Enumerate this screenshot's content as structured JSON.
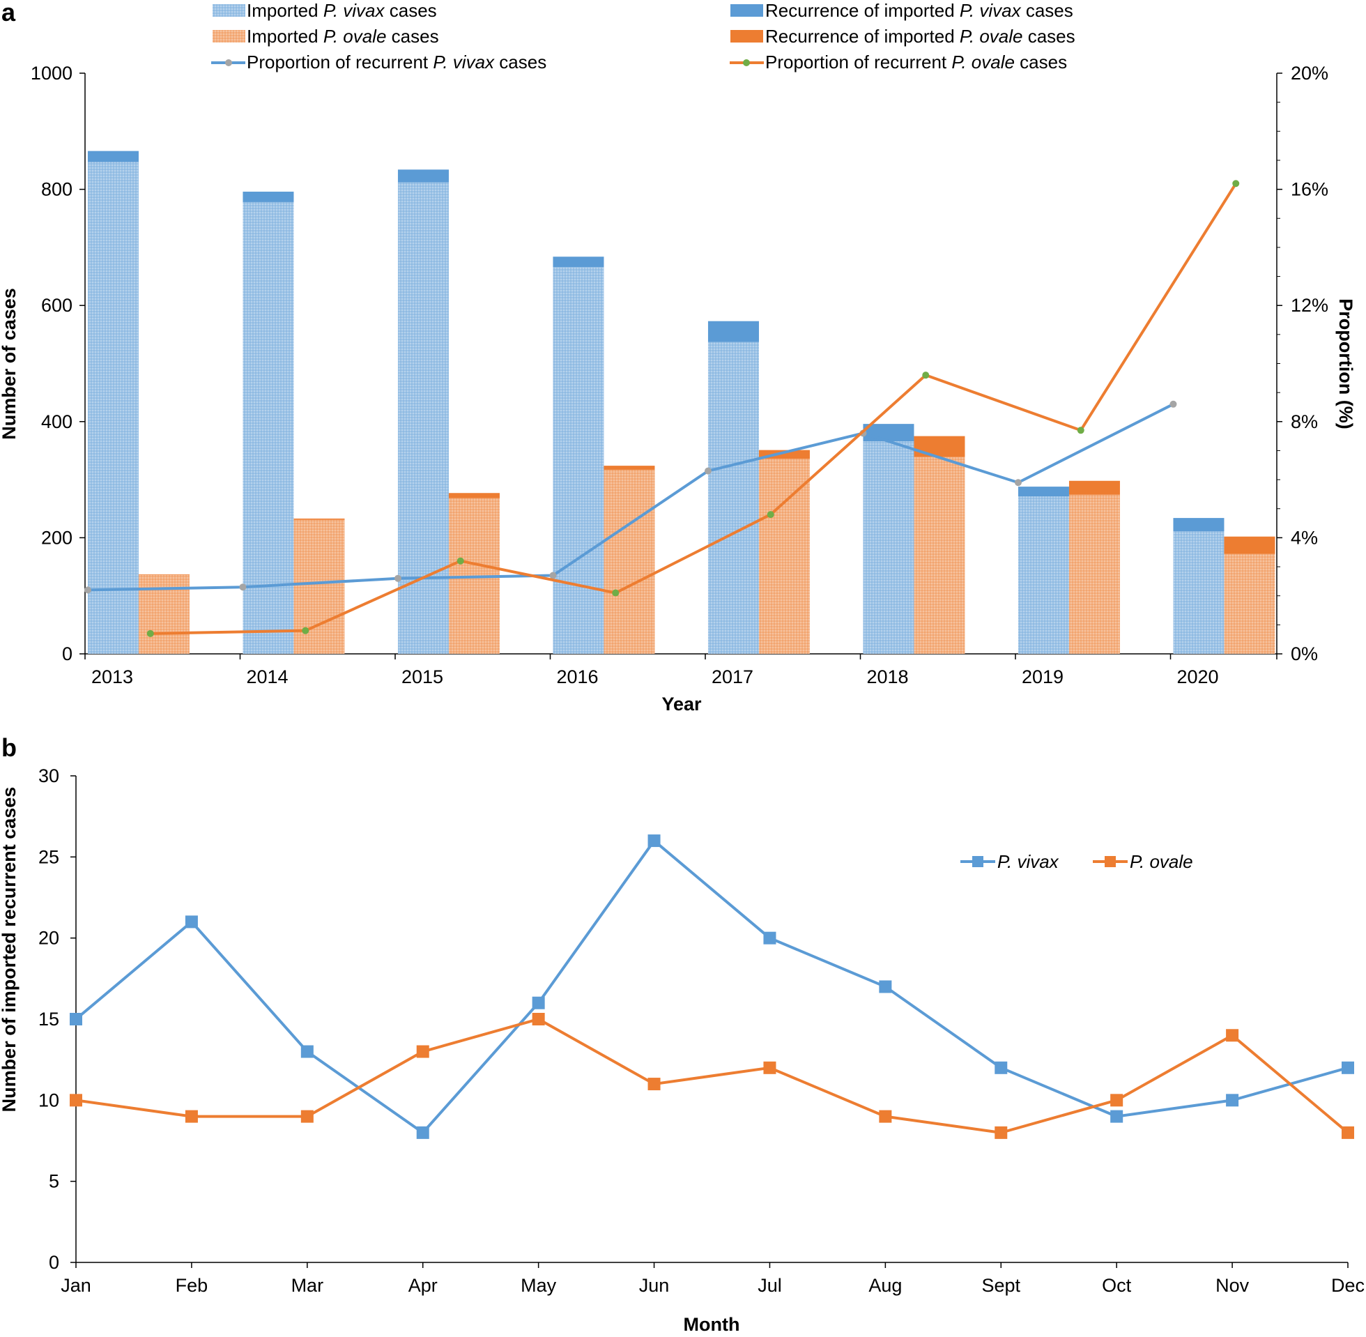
{
  "chart_data": [
    {
      "type": "bar",
      "panel_label": "a",
      "xlabel": "Year",
      "ylabel": "Number of cases",
      "y2label": "Proportion (%)",
      "categories": [
        "2013",
        "2014",
        "2015",
        "2016",
        "2017",
        "2018",
        "2019",
        "2020"
      ],
      "ylim": [
        0,
        1000
      ],
      "yticks": [
        "0",
        "200",
        "400",
        "600",
        "800",
        "1000"
      ],
      "y2lim": [
        0,
        20
      ],
      "y2ticks": [
        "0%",
        "4%",
        "8%",
        "12%",
        "16%",
        "20%"
      ],
      "legend": {
        "imported_vivax": {
          "prefix": "Imported ",
          "sp": "P. vivax",
          "suffix": " cases"
        },
        "imported_ovale": {
          "prefix": "Imported ",
          "sp": "P. ovale",
          "suffix": " cases"
        },
        "prop_vivax": {
          "prefix": "Proportion of recurrent ",
          "sp": "P. vivax",
          "suffix": " cases"
        },
        "rec_vivax": {
          "prefix": "Recurrence of imported ",
          "sp": "P. vivax",
          "suffix": " cases"
        },
        "rec_ovale": {
          "prefix": "Recurrence of imported ",
          "sp": "P. ovale",
          "suffix": " cases"
        },
        "prop_ovale": {
          "prefix": "Proportion of recurrent ",
          "sp": "P. ovale",
          "suffix": " cases"
        }
      },
      "stacked_series": [
        {
          "name": "Imported P. vivax cases",
          "group": "vivax",
          "values": [
            847,
            778,
            812,
            666,
            537,
            366,
            271,
            211
          ],
          "color": "#9DC3E6"
        },
        {
          "name": "Recurrence of imported P. vivax cases",
          "group": "vivax",
          "values": [
            19,
            18,
            22,
            18,
            36,
            30,
            17,
            23
          ],
          "color": "#5B9BD5"
        },
        {
          "name": "Imported P. ovale cases",
          "group": "ovale",
          "values": [
            136,
            231,
            268,
            317,
            336,
            339,
            274,
            172
          ],
          "color": "#F4B183"
        },
        {
          "name": "Recurrence of imported P. ovale cases",
          "group": "ovale",
          "values": [
            1,
            2,
            9,
            7,
            15,
            36,
            24,
            30
          ],
          "color": "#ED7D31"
        }
      ],
      "line_series": [
        {
          "name": "Proportion of recurrent P. vivax cases",
          "axis": "right",
          "values": [
            2.2,
            2.3,
            2.6,
            2.7,
            6.3,
            7.6,
            5.9,
            8.6
          ],
          "color": "#5B9BD5",
          "marker_color": "#A5A5A5"
        },
        {
          "name": "Proportion of recurrent P. ovale cases",
          "axis": "right",
          "values": [
            0.7,
            0.8,
            3.2,
            2.1,
            4.8,
            9.6,
            7.7,
            16.2
          ],
          "color": "#ED7D31",
          "marker_color": "#70AD47"
        }
      ]
    },
    {
      "type": "line",
      "panel_label": "b",
      "xlabel": "Month",
      "ylabel": "Number of imported recurrent  cases",
      "categories": [
        "Jan",
        "Feb",
        "Mar",
        "Apr",
        "May",
        "Jun",
        "Jul",
        "Aug",
        "Sept",
        "Oct",
        "Nov",
        "Dec"
      ],
      "ylim": [
        0,
        30
      ],
      "yticks": [
        "0",
        "5",
        "10",
        "15",
        "20",
        "25",
        "30"
      ],
      "series": [
        {
          "name": "P. vivax",
          "values": [
            15,
            21,
            13,
            8,
            16,
            26,
            20,
            17,
            12,
            9,
            10,
            12
          ],
          "color": "#5B9BD5"
        },
        {
          "name": "P. ovale",
          "values": [
            10,
            9,
            9,
            13,
            15,
            11,
            12,
            9,
            8,
            10,
            14,
            8
          ],
          "color": "#ED7D31"
        }
      ],
      "legend_position": "upper-right"
    }
  ]
}
